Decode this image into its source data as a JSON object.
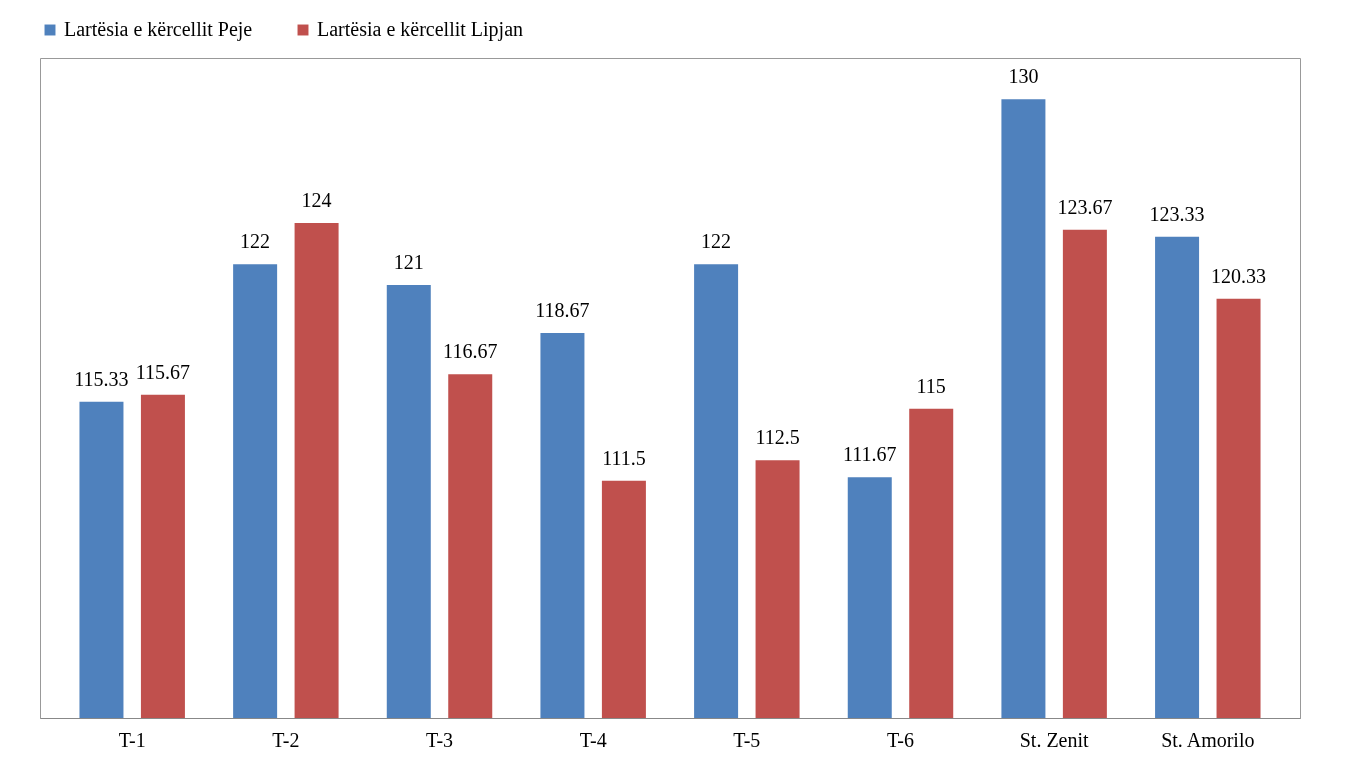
{
  "chart_data": {
    "type": "bar",
    "categories": [
      "T-1",
      "T-2",
      "T-3",
      "T-4",
      "T-5",
      "T-6",
      "St. Zenit",
      "St. Amorilo"
    ],
    "series": [
      {
        "name": "Lartësia e kërcellit Peje",
        "color": "#4f81bd",
        "values": [
          115.33,
          122,
          121,
          118.67,
          122,
          111.67,
          130,
          123.33
        ]
      },
      {
        "name": "Lartësia e kërcellit Lipjan",
        "color": "#c0504d",
        "values": [
          115.67,
          124,
          116.67,
          111.5,
          112.5,
          115,
          123.67,
          120.33
        ]
      }
    ],
    "ylim": [
      100,
      132
    ],
    "data_labels": true,
    "legend": "top",
    "tick_labels": "x"
  }
}
